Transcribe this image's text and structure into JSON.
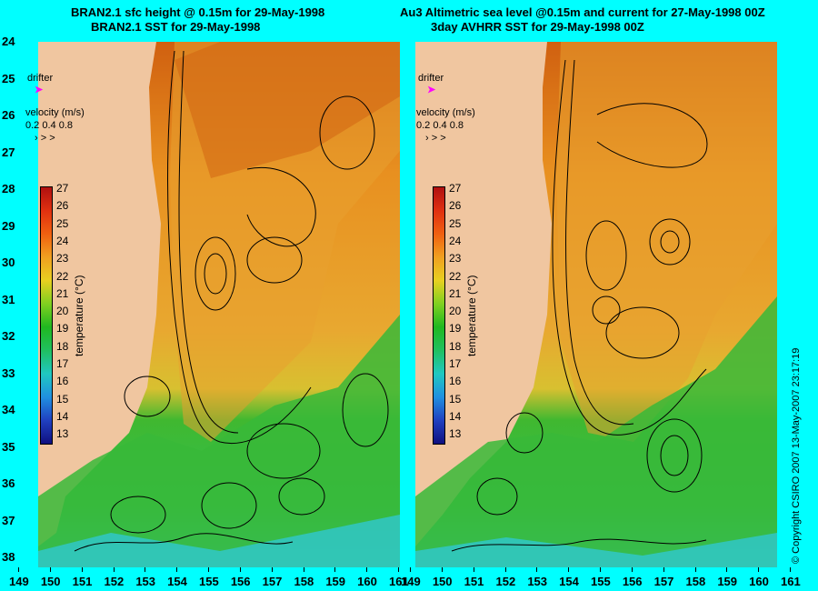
{
  "titles": {
    "left_line1": "BRAN2.1 sfc height @ 0.15m for 29-May-1998",
    "left_line2": "BRAN2.1 SST for 29-May-1998",
    "right_line1": "Au3 Altimetric sea level  @0.15m and current for 27-May-1998 00Z",
    "right_line2": "3day AVHRR SST for 29-May-1998 00Z"
  },
  "legend": {
    "drifter_label": "drifter",
    "velocity_label": "velocity (m/s)",
    "velocity_values": "0.2 0.4 0.8",
    "colorbar_label": "temperature (°C)",
    "colorbar_ticks": [
      "27",
      "26",
      "25",
      "24",
      "23",
      "22",
      "21",
      "20",
      "19",
      "18",
      "17",
      "16",
      "15",
      "14",
      "13"
    ]
  },
  "axes": {
    "lat_ticks": [
      "24",
      "25",
      "26",
      "27",
      "28",
      "29",
      "30",
      "31",
      "32",
      "33",
      "34",
      "35",
      "36",
      "37",
      "38"
    ],
    "lon_ticks_left": [
      "149",
      "150",
      "151",
      "152",
      "153",
      "154",
      "155",
      "156",
      "157",
      "158",
      "159",
      "160",
      "161"
    ],
    "lon_ticks_right": [
      "149",
      "150",
      "151",
      "152",
      "153",
      "154",
      "155",
      "156",
      "157",
      "158",
      "159",
      "160",
      "161"
    ]
  },
  "colors": {
    "background": "#00ffff",
    "land": "#f0c6a0",
    "warm": "#e07a10",
    "mid": "#e8b030",
    "cool": "#2cb830",
    "cold": "#30c8d0",
    "drifter": "#ff00ff"
  },
  "copyright": "© Copyright CSIRO 2007   13-May-2007 23:17:19"
}
